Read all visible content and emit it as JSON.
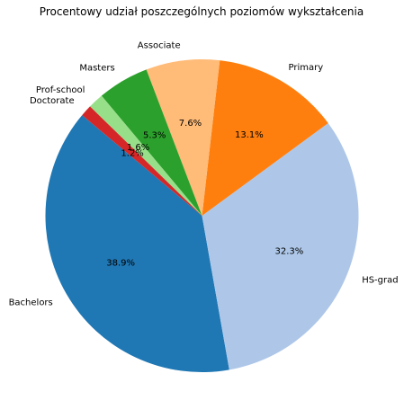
{
  "chart_data": {
    "type": "pie",
    "title": "Procentowy udział poszczególnych poziomów wykształcenia",
    "start_angle_deg": 140,
    "direction": "counterclockwise",
    "slices": [
      {
        "label": "Bachelors",
        "value": 38.9,
        "pct_label": "38.9%",
        "color": "#1f77b4"
      },
      {
        "label": "HS-grad",
        "value": 32.3,
        "pct_label": "32.3%",
        "color": "#aec7e8"
      },
      {
        "label": "Primary",
        "value": 13.1,
        "pct_label": "13.1%",
        "color": "#ff7f0e"
      },
      {
        "label": "Associate",
        "value": 7.6,
        "pct_label": "7.6%",
        "color": "#ffbb78"
      },
      {
        "label": "Masters",
        "value": 5.3,
        "pct_label": "5.3%",
        "color": "#2ca02c"
      },
      {
        "label": "Prof-school",
        "value": 1.6,
        "pct_label": "1.6%",
        "color": "#98df8a"
      },
      {
        "label": "Doctorate",
        "value": 1.2,
        "pct_label": "1.2%",
        "color": "#d62728"
      }
    ]
  }
}
